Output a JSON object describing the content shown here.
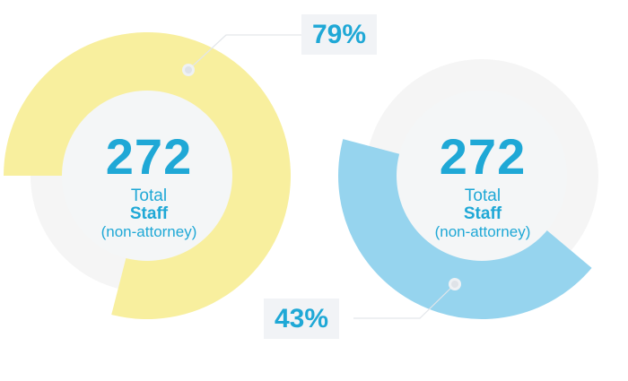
{
  "chart_data": [
    {
      "type": "pie",
      "value": 79,
      "value_label": "79%",
      "center_value": "272",
      "center_label_line1": "Total",
      "center_label_line2": "Staff",
      "center_label_line3": "(non-attorney)",
      "color": "#f8ef9e",
      "track_color": "#f5f5f5",
      "hole_color": "#f4f6f7",
      "start_angle_deg": 180
    },
    {
      "type": "pie",
      "value": 43,
      "value_label": "43%",
      "center_value": "272",
      "center_label_line1": "Total",
      "center_label_line2": "Staff",
      "center_label_line3": "(non-attorney)",
      "color": "#96d4ee",
      "track_color": "#f5f5f5",
      "hole_color": "#f4f6f7",
      "start_angle_deg": 40
    }
  ]
}
